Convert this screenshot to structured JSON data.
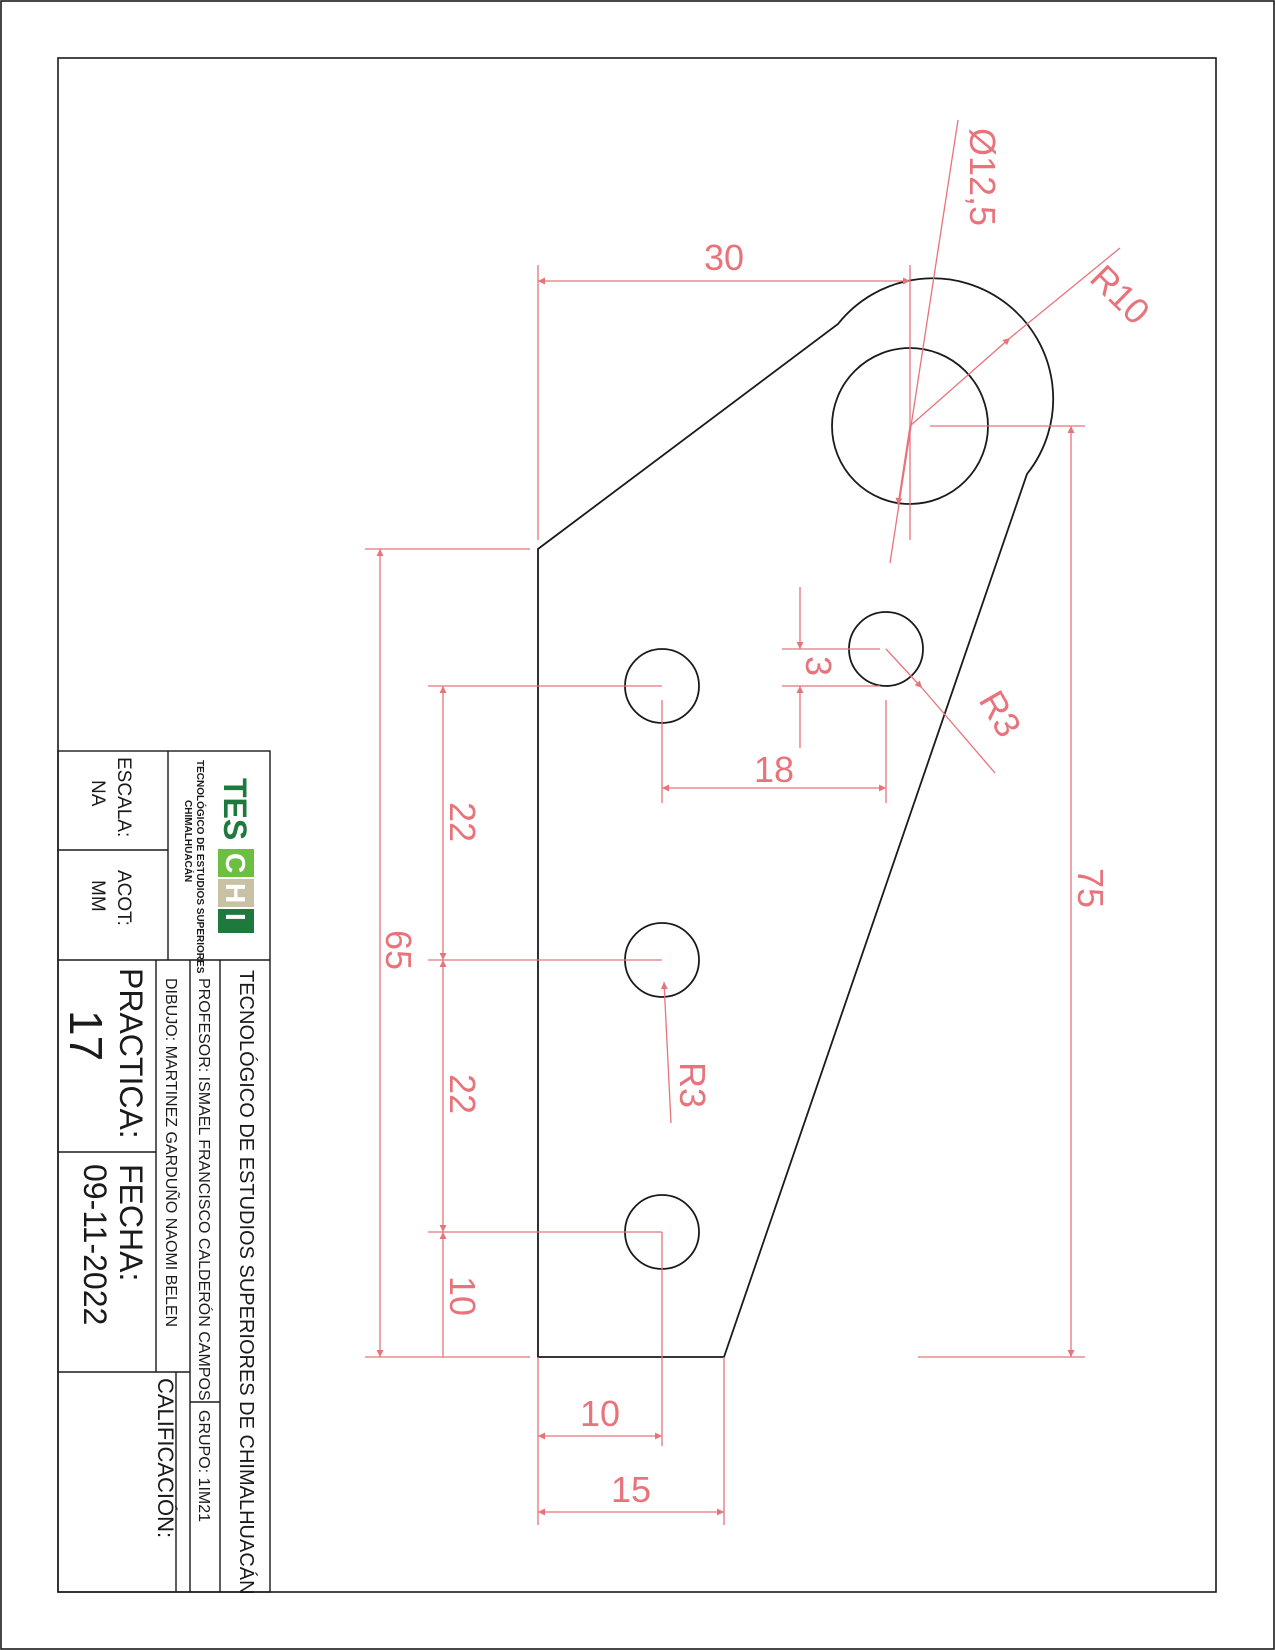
{
  "drawing": {
    "part_outline": {
      "eye_hole_diameter": "Ø12,5",
      "eye_radius": "R10",
      "small_hole_radius": "R3"
    },
    "dimensions": [
      {
        "id": "top-width",
        "text": "30"
      },
      {
        "id": "eye-diameter",
        "text": "Ø12,5"
      },
      {
        "id": "eye-radius",
        "text": "R10"
      },
      {
        "id": "hole-offset-vertical",
        "text": "3"
      },
      {
        "id": "hole-radius-upper",
        "text": "R3"
      },
      {
        "id": "hole-spacing-horizontal",
        "text": "18"
      },
      {
        "id": "hole-spacing-upper",
        "text": "22"
      },
      {
        "id": "overall-height-right",
        "text": "75"
      },
      {
        "id": "left-edge-height",
        "text": "65"
      },
      {
        "id": "hole-radius-lower",
        "text": "R3"
      },
      {
        "id": "hole-spacing-lower",
        "text": "22"
      },
      {
        "id": "bottom-hole-offset",
        "text": "10"
      },
      {
        "id": "hole-x-offset",
        "text": "10"
      },
      {
        "id": "base-width",
        "text": "15"
      }
    ]
  },
  "title_block": {
    "institution": "TECNOLÓGICO DE ESTUDIOS SUPERIORES DE CHIMALHUACÁN",
    "professor": "PROFESOR: ISMAEL FRANCISCO CALDERÓN CAMPOS",
    "group": "GRUPO: 1IM21",
    "drawn_by": "DIBUJO: MARTINEZ GARDUÑO NAOMI BELEN",
    "grade_label": "CALIFICACIÓN:",
    "practice_label": "PRACTICA:",
    "practice_number": "17",
    "date_label": "FECHA:",
    "date_value": "09-11-2022",
    "scale_label": "ESCALA:",
    "scale_value": "NA",
    "units_label": "ACOT:",
    "units_value": "MM",
    "logo": {
      "letters_tes": "TES",
      "letter_c": "C",
      "letter_h": "H",
      "letter_i": "I",
      "line1": "TECNOLÓGICO DE ESTUDIOS SUPERIORES",
      "line2": "CHIMALHUACÁN"
    }
  },
  "colors": {
    "dimension": "#e8737b",
    "outline": "#1a1a1a",
    "logo_dark_green": "#1e7a3c",
    "logo_light_green": "#6cbf3f",
    "logo_beige": "#c9c1a3"
  }
}
